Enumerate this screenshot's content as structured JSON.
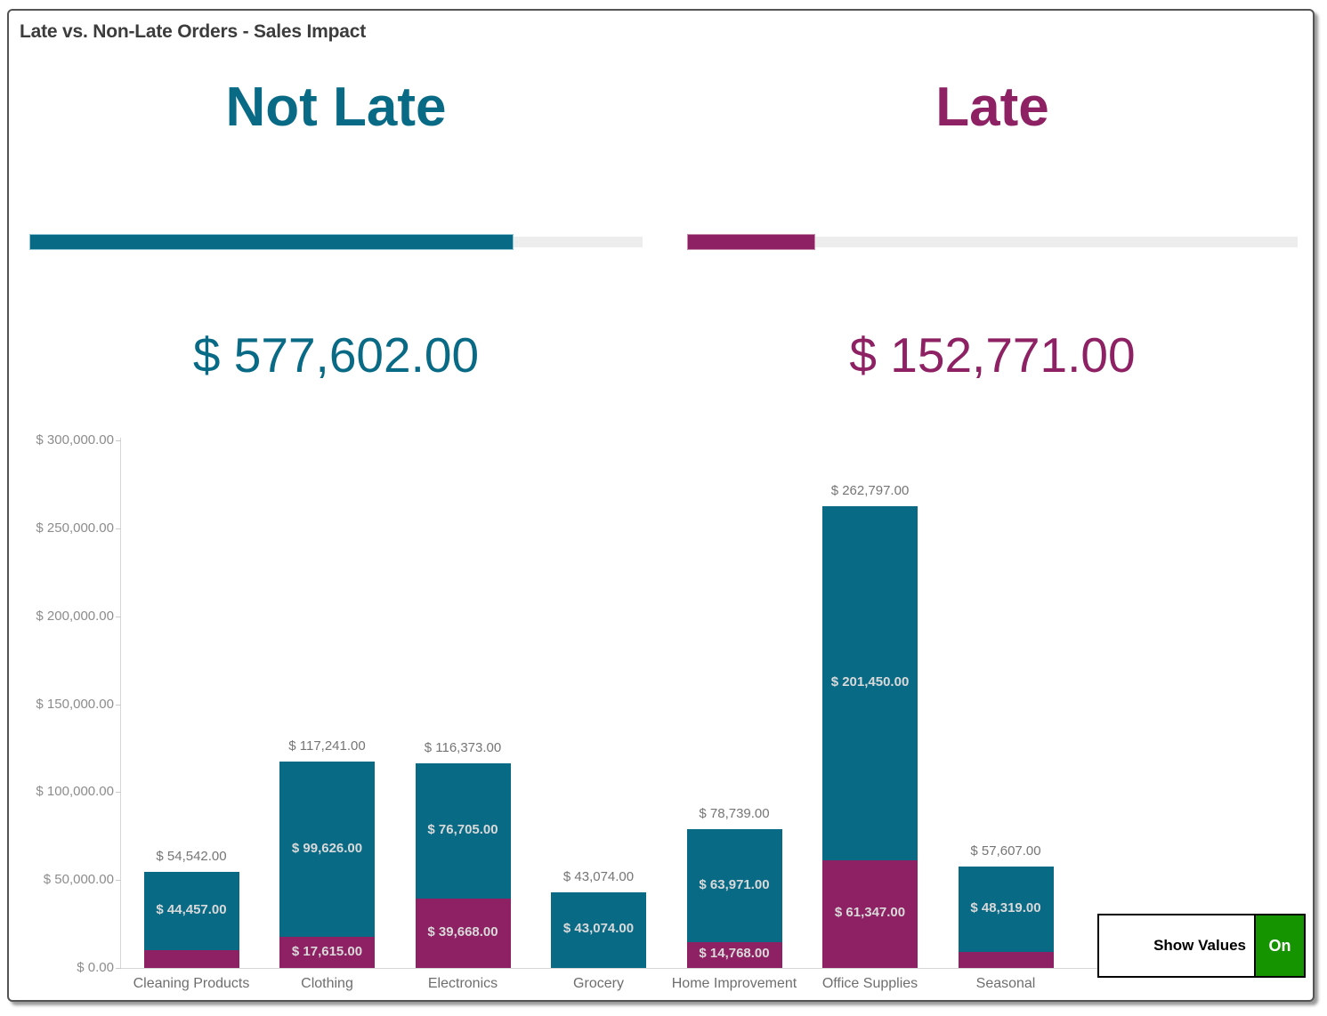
{
  "header": {
    "title": "Late vs. Non-Late Orders - Sales Impact"
  },
  "kpis": {
    "not_late": {
      "label": "Not Late",
      "value": "$ 577,602.00",
      "color": "#086a85",
      "progress_pct": 79
    },
    "late": {
      "label": "Late",
      "value": "$ 152,771.00",
      "color": "#8d2163",
      "progress_pct": 21
    }
  },
  "toggle": {
    "label": "Show Values",
    "state": "On",
    "on_color": "#169400"
  },
  "chart_data": {
    "type": "bar",
    "stacked": true,
    "title": "Late vs. Non-Late Orders - Sales Impact",
    "xlabel": "",
    "ylabel": "",
    "grid": false,
    "legend": "none",
    "ylim": [
      0,
      300000
    ],
    "categories": [
      "Cleaning Products",
      "Clothing",
      "Electronics",
      "Grocery",
      "Home Improvement",
      "Office Supplies",
      "Seasonal"
    ],
    "series": [
      {
        "name": "Late",
        "color": "#8d2163",
        "values": [
          10085,
          17615,
          39668,
          0,
          14768,
          61347,
          9288
        ],
        "labels": [
          "",
          "$ 17,615.00",
          "$ 39,668.00",
          "",
          "$ 14,768.00",
          "$ 61,347.00",
          ""
        ]
      },
      {
        "name": "Not Late",
        "color": "#086a85",
        "values": [
          44457,
          99626,
          76705,
          43074,
          63971,
          201450,
          48319
        ],
        "labels": [
          "$ 44,457.00",
          "$ 99,626.00",
          "$ 76,705.00",
          "$ 43,074.00",
          "$ 63,971.00",
          "$ 201,450.00",
          "$ 48,319.00"
        ]
      }
    ],
    "totals": [
      54542,
      117241,
      116373,
      43074,
      78739,
      262797,
      57607
    ],
    "total_labels": [
      "$ 54,542.00",
      "$ 117,241.00",
      "$ 116,373.00",
      "$ 43,074.00",
      "$ 78,739.00",
      "$ 262,797.00",
      "$ 57,607.00"
    ],
    "yticks": {
      "values": [
        0,
        50000,
        100000,
        150000,
        200000,
        250000,
        300000
      ],
      "labels": [
        "$ 0.00",
        "$ 50,000.00",
        "$ 100,000.00",
        "$ 150,000.00",
        "$ 200,000.00",
        "$ 250,000.00",
        "$ 300,000.00"
      ]
    }
  }
}
